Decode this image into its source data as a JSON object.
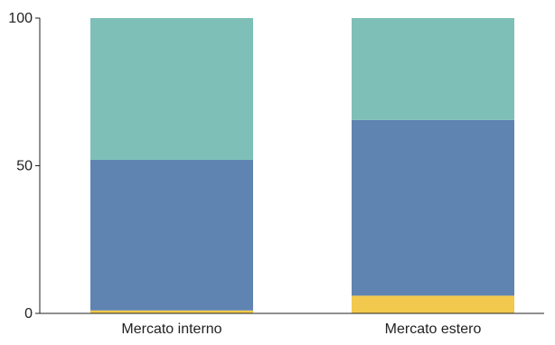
{
  "chart_data": {
    "type": "bar",
    "stacked": true,
    "categories": [
      "Mercato interno",
      "Mercato estero"
    ],
    "series": [
      {
        "color": "#f2c94c",
        "values": [
          1,
          6
        ]
      },
      {
        "color": "#5f84b1",
        "values": [
          51,
          59.5
        ]
      },
      {
        "color": "#7ebfb7",
        "values": [
          48,
          34.5
        ]
      }
    ],
    "ylim": [
      0,
      100
    ],
    "yticks": [
      0,
      50,
      100
    ],
    "title": "",
    "xlabel": "",
    "ylabel": "",
    "grid": false,
    "legend": "none"
  }
}
